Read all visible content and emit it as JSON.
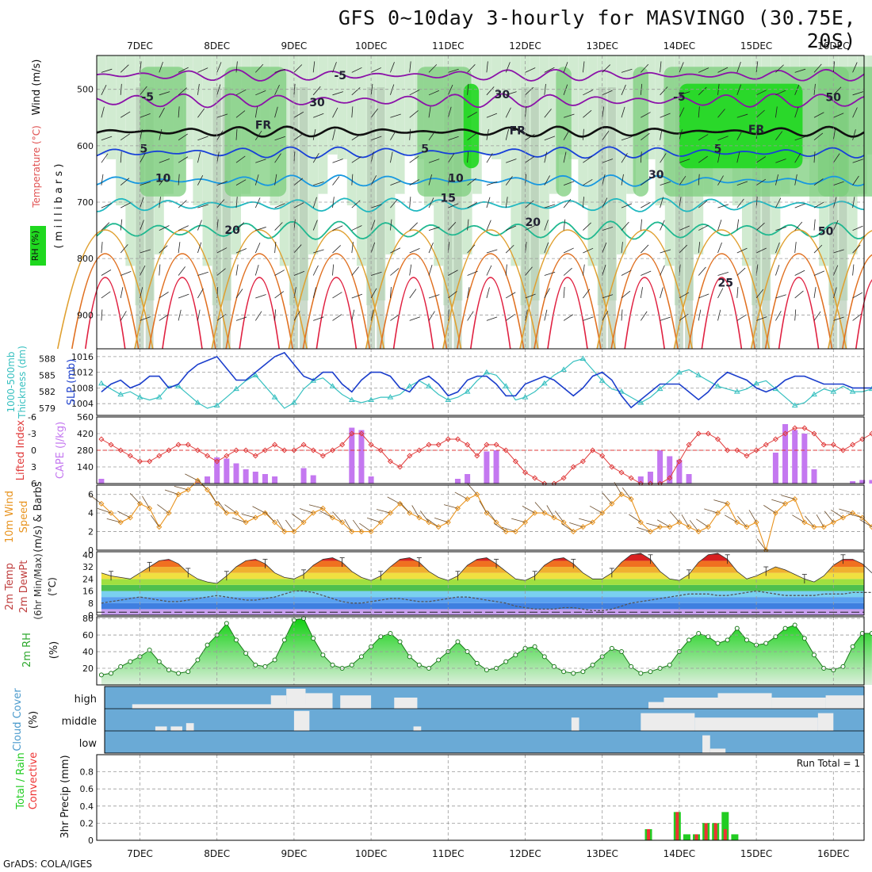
{
  "title": "GFS 0~10day 3-hourly for MASVINGO (30.75E, 20S)",
  "credit": "GrADS: COLA/IGES",
  "colors": {
    "rh_dark": "#1fd81f",
    "rh_mid": "#7ccd7c",
    "rh_light": "#c9e8c9",
    "grid": "#9a9a9a",
    "slp": "#1c3fcc",
    "thickness": "#37c0c0",
    "cape": "#c478f0",
    "lifted": "#e03a3a",
    "wind10": "#e89420",
    "rh2m": "#2ea82e",
    "cloud": "#6aaad6",
    "cloud_fill": "#ececec",
    "precip_total": "#22cc22",
    "precip_conv": "#ee3333"
  },
  "chart_data": [
    {
      "id": "upper-air",
      "type": "contour",
      "x_ticks": [
        "7DEC",
        "8DEC",
        "9DEC",
        "10DEC",
        "11DEC",
        "12DEC",
        "13DEC",
        "14DEC",
        "15DEC",
        "16DEC"
      ],
      "ylim": [
        440,
        960
      ],
      "y_ticks": [
        500,
        600,
        700,
        800,
        900
      ],
      "ylabel_parts": [
        "RH (%)",
        "Temperature (°C)",
        "Wind (m/s)",
        "( m i l l i b a r s )"
      ],
      "contour_labels": [
        {
          "text": "-5",
          "t": 2.6,
          "p": 482
        },
        {
          "text": "-5",
          "t": 0.1,
          "p": 520
        },
        {
          "text": "-5",
          "t": 7.0,
          "p": 520
        },
        {
          "text": "FR",
          "t": 1.6,
          "p": 570
        },
        {
          "text": "FR",
          "t": 4.9,
          "p": 580
        },
        {
          "text": "FR",
          "t": 8.0,
          "p": 578
        },
        {
          "text": "5",
          "t": 0.05,
          "p": 612
        },
        {
          "text": "5",
          "t": 3.7,
          "p": 612
        },
        {
          "text": "5",
          "t": 7.5,
          "p": 612
        },
        {
          "text": "10",
          "t": 0.3,
          "p": 664
        },
        {
          "text": "10",
          "t": 4.1,
          "p": 664
        },
        {
          "text": "15",
          "t": 4.0,
          "p": 699
        },
        {
          "text": "20",
          "t": 1.2,
          "p": 756
        },
        {
          "text": "20",
          "t": 5.1,
          "p": 742
        },
        {
          "text": "25",
          "t": 7.6,
          "p": 850
        },
        {
          "text": "30",
          "t": 2.3,
          "p": 530
        },
        {
          "text": "30",
          "t": 4.7,
          "p": 516
        },
        {
          "text": "30",
          "t": 6.7,
          "p": 658
        },
        {
          "text": "50",
          "t": 9.0,
          "p": 521
        },
        {
          "text": "50",
          "t": 8.9,
          "p": 758
        }
      ]
    },
    {
      "id": "slp-thickness",
      "type": "line",
      "ylabel_left": [
        "1000-500mb",
        "Thickness (dm)"
      ],
      "ylabel_right": "SLP (mb)",
      "left_ticks": [
        579,
        582,
        585,
        588
      ],
      "right_ticks": [
        1004,
        1008,
        1012,
        1016
      ],
      "series": [
        {
          "name": "SLP (mb)",
          "ylim": [
            1001,
            1018
          ],
          "values": [
            1007,
            1009,
            1010,
            1008,
            1009,
            1011,
            1011,
            1008,
            1009,
            1012,
            1014,
            1015,
            1016,
            1013,
            1010,
            1010,
            1012,
            1014,
            1016,
            1017,
            1014,
            1011,
            1010,
            1012,
            1012,
            1009,
            1007,
            1010,
            1012,
            1012,
            1011,
            1008,
            1007,
            1010,
            1011,
            1009,
            1006,
            1007,
            1010,
            1011,
            1011,
            1009,
            1006,
            1006,
            1009,
            1010,
            1011,
            1010,
            1008,
            1006,
            1008,
            1011,
            1012,
            1010,
            1006,
            1003,
            1005,
            1007,
            1009,
            1009,
            1009,
            1007,
            1005,
            1007,
            1010,
            1012,
            1011,
            1010,
            1008,
            1007,
            1008,
            1010,
            1011,
            1011,
            1010,
            1009,
            1009,
            1009,
            1008,
            1008,
            1008
          ]
        },
        {
          "name": "Thickness (dm)",
          "ylim": [
            577.7,
            589.8
          ],
          "values": [
            583.5,
            582.5,
            581.5,
            582,
            581,
            580.5,
            581,
            583,
            583,
            581.5,
            580,
            579,
            579.5,
            581,
            582.5,
            584,
            585,
            583,
            581,
            579,
            580,
            582.5,
            584,
            584.5,
            583,
            581.5,
            580.5,
            580,
            580.5,
            581,
            581,
            581.5,
            583,
            584,
            583,
            581.5,
            580.5,
            581,
            582,
            584,
            585.5,
            585,
            583,
            580.5,
            581,
            582,
            583.5,
            585,
            586,
            587.5,
            588,
            586,
            584,
            582.5,
            582,
            581,
            580,
            581,
            582.5,
            584,
            585.5,
            586,
            585,
            584,
            583,
            582.5,
            582,
            582.5,
            583.5,
            584,
            582.5,
            581,
            579.5,
            580,
            581.5,
            582.5,
            582,
            583,
            582,
            582,
            582.5
          ]
        }
      ]
    },
    {
      "id": "cape-lifted",
      "type": "bar+line",
      "ylabel_left": "Lifted Index",
      "ylabel_right": "CAPE (J/kg)",
      "left_ticks": [
        "-6",
        "-3",
        "0",
        "3",
        "6"
      ],
      "right_ticks": [
        140,
        280,
        420,
        560
      ],
      "cape_ylim": [
        0,
        560
      ],
      "cape": [
        40,
        0,
        0,
        0,
        0,
        0,
        0,
        0,
        0,
        0,
        20,
        60,
        220,
        210,
        170,
        120,
        100,
        80,
        60,
        0,
        0,
        130,
        70,
        0,
        0,
        0,
        470,
        450,
        60,
        0,
        0,
        0,
        0,
        0,
        0,
        0,
        0,
        40,
        80,
        0,
        270,
        280,
        0,
        0,
        0,
        0,
        0,
        0,
        0,
        0,
        0,
        0,
        0,
        0,
        0,
        0,
        0,
        0,
        0,
        0,
        0,
        0,
        0,
        0,
        0,
        0,
        0,
        0,
        0,
        0,
        0,
        0,
        0,
        0,
        0,
        0,
        0,
        0,
        0,
        0,
        0,
        0,
        0,
        0,
        0,
        0,
        0,
        0,
        0,
        0,
        0,
        0,
        0,
        0,
        0,
        0,
        0,
        0,
        0,
        0,
        0,
        0,
        0,
        0,
        0,
        0,
        0,
        0,
        0,
        0,
        0,
        0,
        0,
        0,
        0,
        0,
        0,
        0,
        0,
        0,
        0,
        0,
        0,
        0,
        0,
        0,
        0,
        0,
        0,
        0
      ],
      "cape_full": [
        40,
        0,
        0,
        0,
        0,
        0,
        0,
        0,
        0,
        0,
        20,
        60,
        220,
        210,
        170,
        120,
        100,
        80,
        60,
        0,
        0,
        130,
        70,
        0,
        0,
        0,
        470,
        450,
        60,
        0,
        0,
        0,
        0,
        0,
        0,
        0,
        0,
        40,
        80,
        0,
        270,
        280,
        0,
        0,
        0,
        0,
        0,
        0,
        0,
        0,
        0,
        0,
        0,
        0,
        0,
        0,
        0,
        0,
        0,
        0,
        0,
        20,
        0,
        0,
        0,
        0,
        0,
        0,
        0,
        0,
        0,
        0,
        0,
        0,
        0,
        0,
        0,
        0,
        0,
        0,
        0,
        0
      ],
      "lifted_ylim": [
        6,
        -6
      ],
      "lifted": [
        -2,
        -1,
        0,
        1,
        2,
        2,
        1,
        0,
        -1,
        -1,
        0,
        1,
        2,
        1,
        0,
        0,
        1,
        0,
        -1,
        0,
        0,
        -1,
        0,
        1,
        0,
        -1,
        -3,
        -3,
        -1,
        0,
        2,
        3,
        1,
        0,
        -1,
        -1,
        -2,
        -2,
        -1,
        1,
        -1,
        -1,
        0,
        2,
        4,
        5,
        6,
        6,
        5,
        3,
        2,
        0,
        1,
        3,
        4,
        5,
        6,
        6,
        6,
        5,
        2,
        -1,
        -3,
        -3,
        -2,
        0,
        0,
        1,
        0,
        -1,
        -2,
        -3,
        -4,
        -4,
        -3,
        -1,
        -1,
        0,
        -1,
        -2,
        -3
      ]
    },
    {
      "id": "wind10m",
      "type": "line",
      "ylabel": [
        "10m Wind",
        "Speed",
        "(m/s) & Barbs"
      ],
      "ylim": [
        0,
        7
      ],
      "y_ticks": [
        0,
        2,
        4,
        6
      ],
      "values": [
        5,
        4,
        3,
        3.5,
        5,
        4.5,
        2.5,
        4,
        6,
        6.5,
        7.5,
        6.5,
        5,
        4,
        4,
        3,
        3.5,
        4,
        3,
        2,
        2,
        3,
        4,
        4.5,
        3.5,
        3,
        2,
        2,
        2,
        3,
        4,
        5,
        4,
        3.5,
        3,
        2.5,
        3,
        4.5,
        5.5,
        6,
        4,
        3,
        2,
        2,
        3,
        4,
        4,
        3.5,
        3,
        2,
        2.5,
        3,
        4,
        5,
        6,
        5.5,
        3,
        2,
        2.5,
        2.5,
        3,
        2.5,
        2,
        2.5,
        4,
        5,
        3,
        2.5,
        3,
        0,
        4,
        5,
        5.5,
        3,
        2.5,
        2.5,
        3,
        3.5,
        4,
        3.5,
        2.5
      ]
    },
    {
      "id": "temp2m",
      "type": "area",
      "ylabel": [
        "2m Temp",
        "2m DewPt",
        "(6hr Min/Max)",
        "(°C)"
      ],
      "ylim": [
        0,
        42
      ],
      "y_ticks": [
        0,
        8,
        16,
        24,
        32,
        40
      ],
      "temp": [
        28,
        26,
        25,
        24,
        28,
        32,
        36,
        37,
        34,
        28,
        24,
        22,
        21,
        26,
        32,
        36,
        37,
        34,
        28,
        25,
        24,
        27,
        33,
        37,
        38,
        35,
        29,
        25,
        23,
        26,
        32,
        37,
        38,
        35,
        29,
        25,
        23,
        26,
        33,
        37,
        38,
        34,
        29,
        24,
        23,
        26,
        33,
        37,
        38,
        34,
        28,
        24,
        24,
        28,
        35,
        40,
        41,
        37,
        29,
        24,
        23,
        27,
        35,
        40,
        41,
        37,
        29,
        24,
        26,
        29,
        32,
        30,
        27,
        24,
        22,
        26,
        33,
        37,
        37,
        34,
        28
      ],
      "dewpoint": [
        8,
        9,
        10,
        11,
        12,
        11,
        10,
        9,
        9,
        10,
        11,
        12,
        13,
        12,
        11,
        10,
        10,
        11,
        12,
        14,
        16,
        16,
        15,
        13,
        11,
        9,
        8,
        8,
        9,
        10,
        11,
        11,
        10,
        9,
        9,
        10,
        11,
        12,
        12,
        11,
        10,
        9,
        8,
        6,
        5,
        4,
        4,
        4,
        5,
        5,
        4,
        3,
        3,
        4,
        6,
        8,
        9,
        10,
        11,
        12,
        13,
        14,
        14,
        14,
        13,
        13,
        14,
        15,
        16,
        15,
        14,
        13,
        13,
        13,
        13,
        14,
        14,
        14,
        15,
        15,
        15
      ]
    },
    {
      "id": "rh2m",
      "type": "area",
      "ylabel": [
        "2m RH",
        "(%)"
      ],
      "ylim": [
        0,
        82
      ],
      "y_ticks": [
        20,
        40,
        60,
        80
      ],
      "values": [
        12,
        14,
        22,
        28,
        34,
        42,
        28,
        18,
        14,
        16,
        30,
        48,
        60,
        74,
        54,
        38,
        24,
        22,
        30,
        54,
        78,
        80,
        56,
        36,
        24,
        20,
        24,
        34,
        46,
        58,
        62,
        52,
        34,
        24,
        20,
        30,
        40,
        52,
        40,
        26,
        18,
        20,
        28,
        36,
        44,
        46,
        34,
        22,
        16,
        14,
        16,
        24,
        34,
        44,
        40,
        22,
        14,
        16,
        20,
        24,
        40,
        54,
        62,
        58,
        50,
        54,
        68,
        54,
        48,
        50,
        58,
        68,
        72,
        56,
        36,
        20,
        18,
        22,
        46,
        62,
        62
      ]
    },
    {
      "id": "cloud",
      "type": "area",
      "ylabel": [
        "Cloud Cover",
        "(%)"
      ],
      "levels": [
        "high",
        "middle",
        "low"
      ]
    },
    {
      "id": "precip",
      "type": "bar",
      "ylabel": [
        "Total / Rain",
        "Convective",
        "3hr Precip (mm)"
      ],
      "ylim": [
        0,
        1.0
      ],
      "y_ticks": [
        0,
        0.2,
        0.4,
        0.6,
        0.8
      ],
      "annotation": "Run Total = 1",
      "total": {
        "55": 0.13,
        "58": 0.33,
        "59": 0.07,
        "60": 0.07,
        "61": 0.2,
        "62": 0.2,
        "63": 0.33,
        "64": 0.07
      },
      "convective": {
        "55": 0.13,
        "58": 0.33,
        "59": 0.0,
        "60": 0.07,
        "61": 0.2,
        "62": 0.2,
        "63": 0.13,
        "64": 0.0
      }
    }
  ]
}
